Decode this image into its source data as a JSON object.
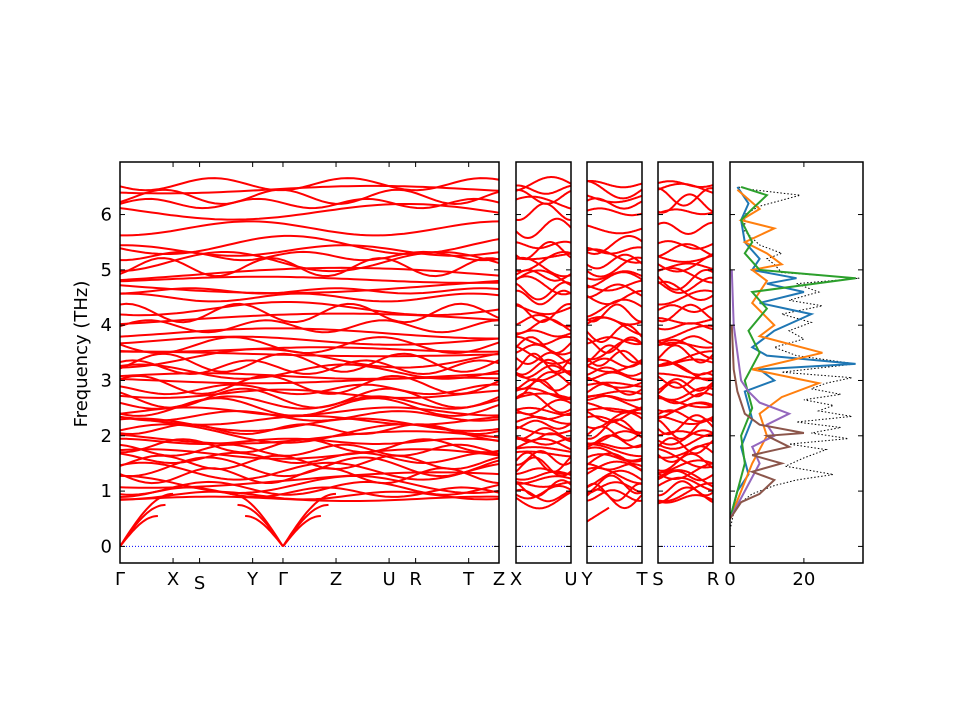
{
  "chart_data": {
    "type": "line",
    "title": "",
    "ylabel": "Frequency (THz)",
    "ylim": [
      -0.3,
      6.95
    ],
    "yticks": [
      0,
      1,
      2,
      3,
      4,
      5,
      6
    ],
    "grid": false,
    "colors": {
      "bands": "#ff0000",
      "zero_line": "#0000ff",
      "dos_total": "#000000",
      "pdos": [
        "#1f77b4",
        "#ff7f0e",
        "#2ca02c",
        "#9467bd",
        "#8c564b"
      ]
    },
    "band_panels": [
      {
        "labels": [
          "Γ",
          "X",
          "S",
          "Y",
          "Γ",
          "Z",
          "U",
          "R",
          "T",
          "Z"
        ],
        "label_positions": [
          0,
          0.14,
          0.21,
          0.35,
          0.43,
          0.57,
          0.71,
          0.78,
          0.92,
          1.0
        ]
      },
      {
        "labels": [
          "X",
          "U"
        ],
        "label_positions": [
          0,
          1
        ]
      },
      {
        "labels": [
          "Y",
          "T"
        ],
        "label_positions": [
          0,
          1
        ]
      },
      {
        "labels": [
          "S",
          "R"
        ],
        "label_positions": [
          0,
          1
        ]
      }
    ],
    "band_levels": [
      0.86,
      0.92,
      0.98,
      1.05,
      1.12,
      1.2,
      1.28,
      1.36,
      1.44,
      1.52,
      1.6,
      1.67,
      1.74,
      1.82,
      1.9,
      1.97,
      2.04,
      2.12,
      2.2,
      2.28,
      2.36,
      2.44,
      2.52,
      2.6,
      2.68,
      2.76,
      2.84,
      2.92,
      3.0,
      3.08,
      3.16,
      3.24,
      3.32,
      3.4,
      3.48,
      3.56,
      3.64,
      3.72,
      3.85,
      3.98,
      4.08,
      4.22,
      4.3,
      4.5,
      4.62,
      4.72,
      4.82,
      4.9,
      5.05,
      5.15,
      5.25,
      5.35,
      5.45,
      5.75,
      6.05,
      6.2,
      6.32,
      6.45,
      6.55
    ],
    "dos": {
      "xticks": [
        0,
        20
      ],
      "xlim": [
        0,
        36
      ],
      "total": [
        [
          0,
          0.3
        ],
        [
          1,
          0.6
        ],
        [
          3,
          0.8
        ],
        [
          6,
          0.95
        ],
        [
          12,
          1.1
        ],
        [
          18,
          1.2
        ],
        [
          28,
          1.3
        ],
        [
          15,
          1.45
        ],
        [
          20,
          1.6
        ],
        [
          26,
          1.75
        ],
        [
          16,
          1.85
        ],
        [
          32,
          1.95
        ],
        [
          22,
          2.05
        ],
        [
          30,
          2.15
        ],
        [
          18,
          2.25
        ],
        [
          33,
          2.35
        ],
        [
          24,
          2.45
        ],
        [
          28,
          2.55
        ],
        [
          20,
          2.65
        ],
        [
          30,
          2.75
        ],
        [
          22,
          2.85
        ],
        [
          26,
          2.95
        ],
        [
          33,
          3.05
        ],
        [
          14,
          3.15
        ],
        [
          34,
          3.3
        ],
        [
          18,
          3.45
        ],
        [
          12,
          3.6
        ],
        [
          20,
          3.75
        ],
        [
          16,
          3.9
        ],
        [
          22,
          4.05
        ],
        [
          14,
          4.2
        ],
        [
          25,
          4.35
        ],
        [
          16,
          4.45
        ],
        [
          24,
          4.6
        ],
        [
          18,
          4.75
        ],
        [
          35,
          4.85
        ],
        [
          14,
          4.95
        ],
        [
          12,
          5.1
        ],
        [
          10,
          5.2
        ],
        [
          14,
          5.3
        ],
        [
          8,
          5.45
        ],
        [
          4,
          5.7
        ],
        [
          4,
          6.0
        ],
        [
          8,
          6.15
        ],
        [
          19,
          6.35
        ],
        [
          6,
          6.45
        ],
        [
          2,
          6.5
        ]
      ],
      "pdos": [
        {
          "points": [
            [
              0,
              0.5
            ],
            [
              2,
              1.0
            ],
            [
              5,
              1.3
            ],
            [
              3,
              1.8
            ],
            [
              6,
              2.3
            ],
            [
              4,
              2.8
            ],
            [
              12,
              3.0
            ],
            [
              8,
              3.2
            ],
            [
              34,
              3.3
            ],
            [
              10,
              3.45
            ],
            [
              6,
              3.6
            ],
            [
              12,
              3.9
            ],
            [
              22,
              4.2
            ],
            [
              8,
              4.4
            ],
            [
              20,
              4.6
            ],
            [
              10,
              4.75
            ],
            [
              18,
              4.85
            ],
            [
              6,
              5.0
            ],
            [
              8,
              5.2
            ],
            [
              4,
              5.5
            ],
            [
              3,
              5.9
            ],
            [
              5,
              6.2
            ],
            [
              2,
              6.5
            ]
          ]
        },
        {
          "points": [
            [
              0,
              0.5
            ],
            [
              3,
              1.0
            ],
            [
              6,
              1.5
            ],
            [
              10,
              2.0
            ],
            [
              8,
              2.4
            ],
            [
              14,
              2.7
            ],
            [
              24,
              2.95
            ],
            [
              6,
              3.2
            ],
            [
              25,
              3.5
            ],
            [
              8,
              3.8
            ],
            [
              12,
              4.0
            ],
            [
              6,
              4.4
            ],
            [
              10,
              4.8
            ],
            [
              6,
              5.0
            ],
            [
              14,
              5.1
            ],
            [
              10,
              5.3
            ],
            [
              4,
              5.5
            ],
            [
              12,
              5.75
            ],
            [
              3,
              5.9
            ],
            [
              8,
              6.1
            ],
            [
              2,
              6.45
            ]
          ]
        },
        {
          "points": [
            [
              0,
              0.5
            ],
            [
              2,
              1.0
            ],
            [
              4,
              1.5
            ],
            [
              3,
              2.0
            ],
            [
              6,
              2.5
            ],
            [
              4,
              3.0
            ],
            [
              8,
              3.5
            ],
            [
              5,
              3.9
            ],
            [
              10,
              4.3
            ],
            [
              6,
              4.6
            ],
            [
              34,
              4.85
            ],
            [
              8,
              5.0
            ],
            [
              4,
              5.3
            ],
            [
              6,
              5.5
            ],
            [
              3,
              5.9
            ],
            [
              6,
              6.1
            ],
            [
              10,
              6.35
            ],
            [
              3,
              6.5
            ]
          ]
        },
        {
          "points": [
            [
              0,
              0.5
            ],
            [
              4,
              1.0
            ],
            [
              8,
              1.5
            ],
            [
              6,
              1.8
            ],
            [
              12,
              2.0
            ],
            [
              10,
              2.2
            ],
            [
              16,
              2.4
            ],
            [
              8,
              2.6
            ],
            [
              5,
              2.8
            ],
            [
              3,
              3.0
            ],
            [
              2,
              3.5
            ],
            [
              1,
              4.0
            ],
            [
              0.5,
              5.0
            ]
          ]
        },
        {
          "points": [
            [
              0,
              0.5
            ],
            [
              3,
              0.8
            ],
            [
              8,
              0.95
            ],
            [
              12,
              1.2
            ],
            [
              6,
              1.35
            ],
            [
              14,
              1.5
            ],
            [
              6,
              1.65
            ],
            [
              16,
              1.8
            ],
            [
              10,
              2.0
            ],
            [
              20,
              2.05
            ],
            [
              8,
              2.2
            ],
            [
              4,
              2.4
            ],
            [
              2,
              2.8
            ],
            [
              1,
              3.2
            ],
            [
              0.5,
              4.0
            ]
          ]
        }
      ]
    }
  }
}
